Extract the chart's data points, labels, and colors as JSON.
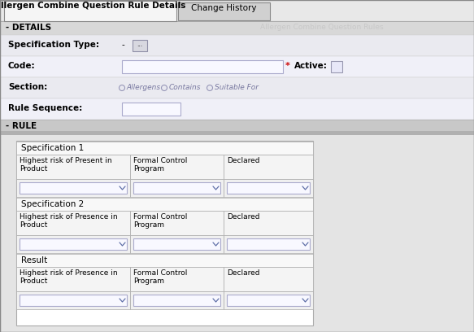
{
  "title": "Allergen Combine Question Rule Details",
  "tab2": "Change History",
  "watermark": "Allergen Combine Question Rules",
  "section_details": "- DETAILS",
  "section_rule": "- RULE",
  "fields": {
    "spec_type_label": "Specification Type:",
    "spec_type_dash": "-",
    "code_label": "Code:",
    "code_required": "*",
    "active_label": "Active:",
    "section_label": "Section:",
    "section_options": [
      "Allergens",
      "Contains",
      "Suitable For"
    ],
    "rule_seq_label": "Rule Sequence:"
  },
  "table": {
    "spec1_title": "Specification 1",
    "spec1_col1": "Highest risk of Present in\nProduct",
    "spec1_col2": "Formal Control\nProgram",
    "spec1_col3": "Declared",
    "spec2_title": "Specification 2",
    "spec2_col1": "Highest risk of Presence in\nProduct",
    "spec2_col2": "Formal Control\nProgram",
    "spec2_col3": "Declared",
    "result_title": "Result",
    "result_col1": "Highest risk of Presence in\nProduct",
    "result_col2": "Formal Control\nProgram",
    "result_col3": "Declared"
  },
  "colors": {
    "bg_outer": "#e8e8e8",
    "bg_content": "#dcdcdc",
    "bg_white": "#ffffff",
    "bg_tab_active": "#f5f5f5",
    "bg_tab_inactive": "#d0d0d0",
    "bg_details_bar": "#d8d8d8",
    "bg_rule_bar": "#b8b8b8",
    "bg_row_alt1": "#eaeaf0",
    "bg_row_alt2": "#f0f0f8",
    "border_dark": "#888888",
    "border_mid": "#aaaaaa",
    "border_light": "#cccccc",
    "text_dark": "#000000",
    "text_bold": "#111111",
    "text_red": "#cc0000",
    "text_watermark": "#c8c8c8",
    "text_radio": "#7878a0",
    "input_bg": "#f8f8ff",
    "input_border": "#aaaacc",
    "dropdown_bg": "#f0f0f8",
    "dropdown_border": "#9898b0",
    "table_bg": "#ffffff",
    "table_row_bg": "#f8f8f8",
    "table_border": "#aaaaaa"
  },
  "figsize": [
    5.83,
    4.08
  ],
  "dpi": 100
}
